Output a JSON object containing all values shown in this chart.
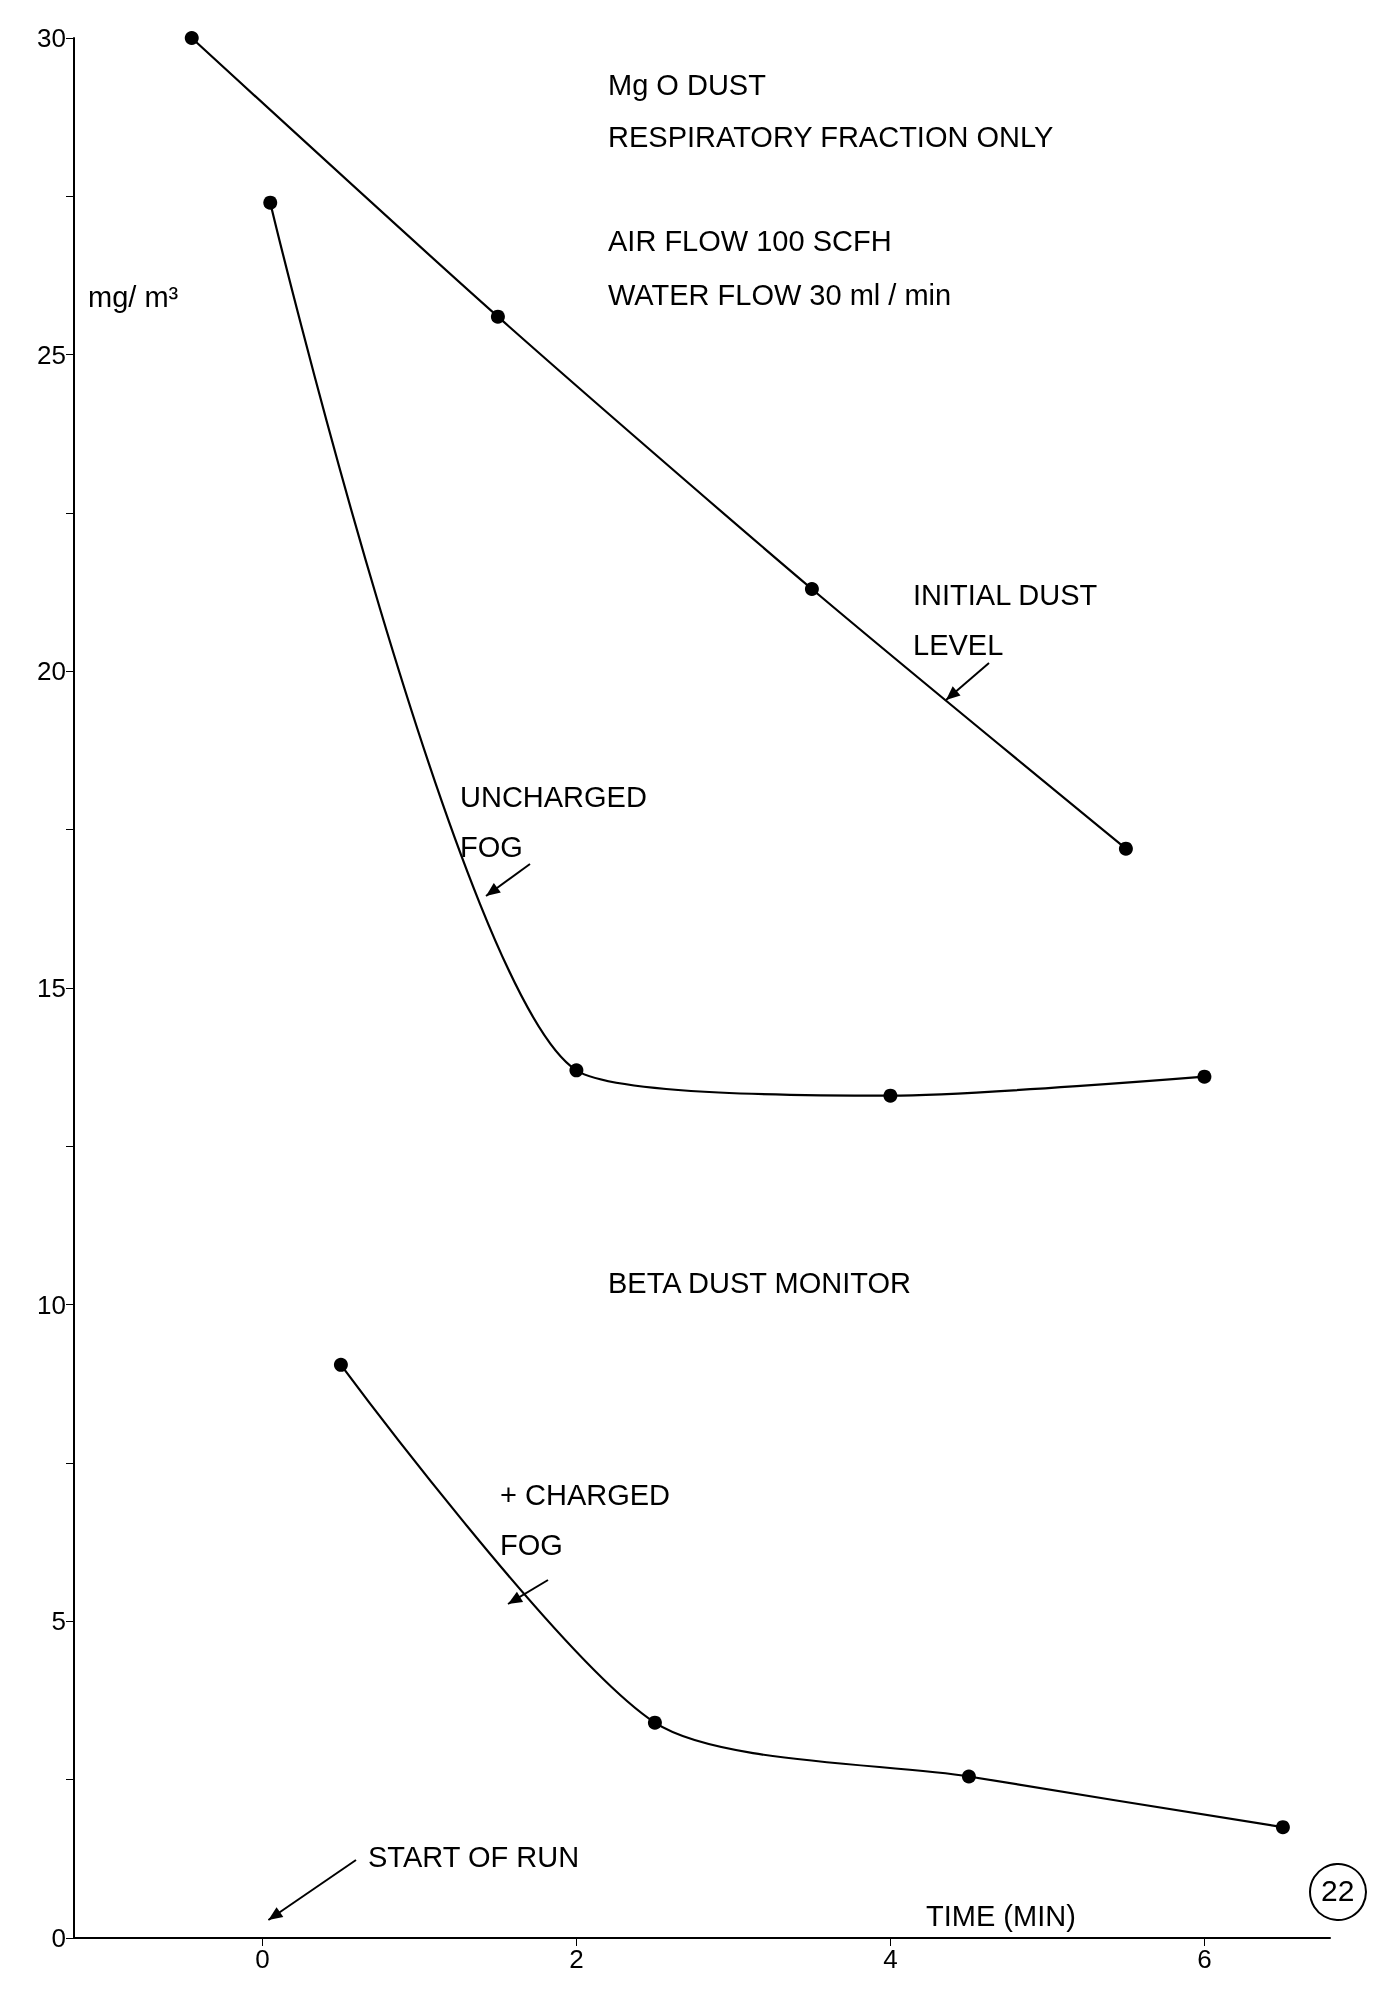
{
  "chart_data": {
    "type": "line",
    "title": "Mg O DUST",
    "subtitle": "RESPIRATORY FRACTION ONLY",
    "xlabel": "TIME (MIN)",
    "ylabel": "mg/ m³",
    "series": [
      {
        "name": "INITIAL DUST LEVEL",
        "color": "#000000",
        "x": [
          -0.45,
          1.5,
          3.5,
          5.5
        ],
        "values": [
          30,
          25.6,
          21.3,
          17.2
        ]
      },
      {
        "name": "UNCHARGED FOG",
        "color": "#000000",
        "x": [
          0.05,
          2.0,
          4.0,
          6.0
        ],
        "values": [
          27.4,
          13.7,
          13.3,
          13.6
        ]
      },
      {
        "name": "+ CHARGED FOG",
        "color": "#000000",
        "x": [
          0.5,
          2.5,
          4.5,
          6.5
        ],
        "values": [
          9.05,
          3.4,
          2.55,
          1.75
        ]
      }
    ],
    "annotations": [
      "AIR FLOW 100 SCFH",
      "WATER FLOW 30 ml / min",
      "BETA DUST MONITOR",
      "START OF RUN",
      "22"
    ],
    "xlim": [
      -1.2,
      6.8
    ],
    "xticks": [
      0,
      2,
      4,
      6
    ],
    "ylim": [
      0,
      30
    ],
    "yticks": [
      0,
      {
        "value": 2.5,
        "label": null
      },
      5,
      {
        "value": 7.5,
        "label": null
      },
      10,
      {
        "value": 12.5,
        "label": null
      },
      15,
      {
        "value": 17.5,
        "label": null
      },
      20,
      {
        "value": 22.5,
        "label": null
      },
      25,
      {
        "value": 27.5,
        "label": null
      },
      30
    ],
    "grid": false,
    "legend": false,
    "marker": "circle",
    "line_style": "solid"
  }
}
